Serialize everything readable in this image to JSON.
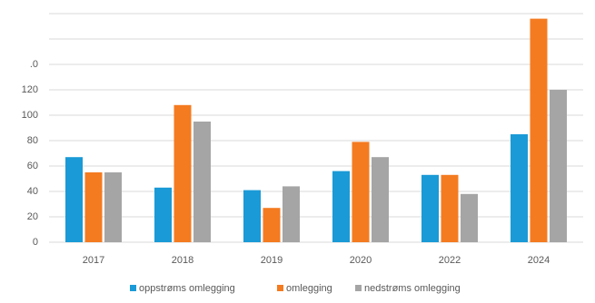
{
  "chart_data": {
    "type": "bar",
    "categories": [
      "2017",
      "2018",
      "2019",
      "2020",
      "2022",
      "2024"
    ],
    "series": [
      {
        "name": "oppstrøms omlegging",
        "color": "#1a9ad6",
        "values": [
          67,
          43,
          41,
          56,
          53,
          85
        ]
      },
      {
        "name": "omlegging",
        "color": "#f47b20",
        "values": [
          55,
          108,
          27,
          79,
          53,
          176
        ]
      },
      {
        "name": "nedstrøms omlegging",
        "color": "#a5a5a5",
        "values": [
          55,
          95,
          44,
          67,
          38,
          120
        ]
      }
    ],
    "ylim": [
      0,
      180
    ],
    "yticks": [
      0,
      20,
      40,
      60,
      80,
      100,
      120,
      {
        "value": 140,
        "label": ".0"
      },
      {
        "value": 160,
        "label": null
      },
      {
        "value": 180,
        "label": null
      }
    ],
    "grid": true,
    "legend": "bottom"
  }
}
